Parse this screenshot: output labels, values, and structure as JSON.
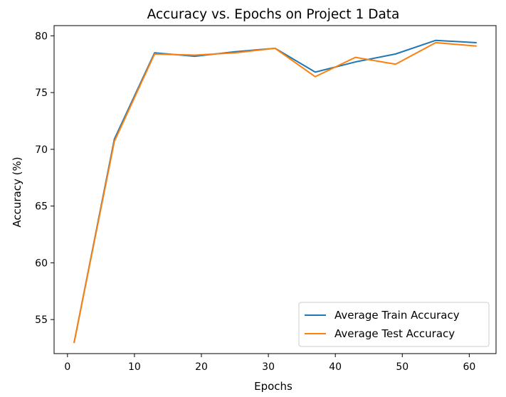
{
  "chart_data": {
    "type": "line",
    "title": "Accuracy vs. Epochs on Project 1 Data",
    "xlabel": "Epochs",
    "ylabel": "Accuracy (%)",
    "xlim": [
      -2,
      64
    ],
    "ylim": [
      52.0,
      80.9
    ],
    "xticks": [
      0,
      10,
      20,
      30,
      40,
      50,
      60
    ],
    "yticks": [
      55,
      60,
      65,
      70,
      75,
      80
    ],
    "grid": false,
    "legend_position": "lower right",
    "x": [
      1,
      7,
      13,
      19,
      25,
      31,
      37,
      43,
      49,
      55,
      61
    ],
    "series": [
      {
        "name": "Average Train Accuracy",
        "color": "#1f77b4",
        "values": [
          53.0,
          70.9,
          78.5,
          78.2,
          78.6,
          78.9,
          76.8,
          77.7,
          78.4,
          79.6,
          79.4
        ]
      },
      {
        "name": "Average Test Accuracy",
        "color": "#ff7f0e",
        "values": [
          53.0,
          70.7,
          78.4,
          78.3,
          78.5,
          78.9,
          76.4,
          78.1,
          77.5,
          79.4,
          79.1
        ]
      }
    ]
  }
}
